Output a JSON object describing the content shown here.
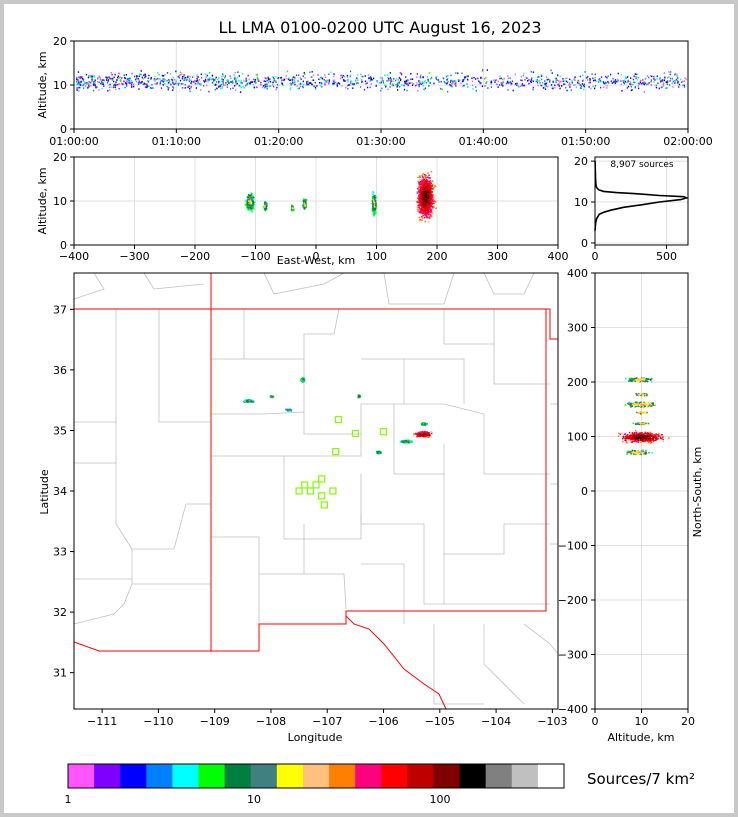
{
  "figure": {
    "title": "LL LMA 0100-0200 UTC August 16, 2023",
    "source_count_label": "8,907 sources",
    "colorbar_label": "Sources/7 km²"
  },
  "chart_data": [
    {
      "id": "time-height",
      "type": "scatter",
      "xlabel": "",
      "ylabel": "Altitude, km",
      "xticks": [
        "01:00:00",
        "01:10:00",
        "01:20:00",
        "01:30:00",
        "01:40:00",
        "01:50:00",
        "02:00:00"
      ],
      "yticks": [
        "0",
        "10",
        "20"
      ],
      "xlim": [
        "01:00:00",
        "02:00:00"
      ],
      "ylim": [
        0,
        20
      ],
      "note_series": "vertical source clusters spread across the hour, centered near 11 km altitude",
      "grid": true
    },
    {
      "id": "east-west-altitude",
      "type": "heatmap",
      "xlabel": "East-West, km",
      "ylabel": "Altitude, km",
      "xticks": [
        "−400",
        "−300",
        "−200",
        "−100",
        "0",
        "100",
        "200",
        "300",
        "400"
      ],
      "yticks": [
        "0",
        "10",
        "20"
      ],
      "xlim": [
        -400,
        400
      ],
      "ylim": [
        0,
        20
      ],
      "clusters": [
        {
          "x": -110,
          "y": 10,
          "w": 20,
          "h": 6
        },
        {
          "x": -85,
          "y": 9,
          "w": 8,
          "h": 3
        },
        {
          "x": -40,
          "y": 8.5,
          "w": 6,
          "h": 2
        },
        {
          "x": -20,
          "y": 9.5,
          "w": 8,
          "h": 4
        },
        {
          "x": 95,
          "y": 9.5,
          "w": 10,
          "h": 7
        },
        {
          "x": 180,
          "y": 11,
          "w": 40,
          "h": 14
        }
      ],
      "grid": true
    },
    {
      "id": "altitude-histogram",
      "type": "line",
      "xlabel": "",
      "ylabel": "",
      "xticks": [
        "0",
        "500"
      ],
      "yticks": [
        "0",
        "10",
        "20"
      ],
      "xlim": [
        0,
        650
      ],
      "ylim": [
        -0.5,
        21
      ],
      "series": [
        {
          "x": [
            0,
            2,
            5,
            12,
            30,
            60,
            110,
            200,
            320,
            450,
            600,
            640,
            620,
            450,
            300,
            150,
            60,
            25,
            12,
            8,
            5,
            3,
            1
          ],
          "y": [
            3,
            4,
            5,
            6,
            7,
            7.5,
            8,
            8.7,
            9.3,
            10,
            10.6,
            11,
            11.3,
            11.6,
            12,
            12.3,
            12.6,
            13,
            13.5,
            14,
            15,
            17,
            20
          ]
        }
      ],
      "grid": true
    },
    {
      "id": "plan-view",
      "type": "scatter",
      "xlabel": "Longitude",
      "ylabel": "Latitude",
      "xticks": [
        "−111",
        "−110",
        "−109",
        "−108",
        "−107",
        "−106",
        "−105",
        "−104",
        "−103"
      ],
      "yticks": [
        "31",
        "32",
        "33",
        "34",
        "35",
        "36",
        "37"
      ],
      "xlim": [
        -111.5,
        -102.9
      ],
      "ylim": [
        30.4,
        37.6
      ],
      "stations": [
        {
          "lon": -106.8,
          "lat": 35.18
        },
        {
          "lon": -106.5,
          "lat": 34.95
        },
        {
          "lon": -106.0,
          "lat": 34.98
        },
        {
          "lon": -106.85,
          "lat": 34.65
        },
        {
          "lon": -107.1,
          "lat": 34.2
        },
        {
          "lon": -107.2,
          "lat": 34.1
        },
        {
          "lon": -107.4,
          "lat": 34.1
        },
        {
          "lon": -107.5,
          "lat": 34.0
        },
        {
          "lon": -107.3,
          "lat": 34.0
        },
        {
          "lon": -106.9,
          "lat": 34.0
        },
        {
          "lon": -107.1,
          "lat": 33.92
        },
        {
          "lon": -107.05,
          "lat": 33.77
        }
      ],
      "clusters": [
        {
          "lon": -108.4,
          "lat": 35.5,
          "w": 0.25,
          "h": 0.06
        },
        {
          "lon": -108.0,
          "lat": 35.57,
          "w": 0.1,
          "h": 0.04
        },
        {
          "lon": -107.7,
          "lat": 35.35,
          "w": 0.12,
          "h": 0.04
        },
        {
          "lon": -107.45,
          "lat": 35.85,
          "w": 0.1,
          "h": 0.1
        },
        {
          "lon": -106.45,
          "lat": 35.58,
          "w": 0.05,
          "h": 0.05
        },
        {
          "lon": -105.3,
          "lat": 34.95,
          "w": 0.45,
          "h": 0.12
        },
        {
          "lon": -105.6,
          "lat": 34.83,
          "w": 0.3,
          "h": 0.06
        },
        {
          "lon": -106.1,
          "lat": 34.65,
          "w": 0.12,
          "h": 0.06
        },
        {
          "lon": -105.3,
          "lat": 35.12,
          "w": 0.15,
          "h": 0.05
        }
      ],
      "grid": false
    },
    {
      "id": "altitude-north-south",
      "type": "heatmap",
      "xlabel": "Altitude, km",
      "ylabel": "North-South, km",
      "xticks": [
        "0",
        "10",
        "20"
      ],
      "yticks": [
        "−400",
        "−300",
        "−200",
        "−100",
        "0",
        "100",
        "200",
        "300",
        "400"
      ],
      "xlim": [
        0,
        20
      ],
      "ylim": [
        -400,
        400
      ],
      "clusters": [
        {
          "x": 10,
          "y": 100,
          "w": 14,
          "h": 30
        },
        {
          "x": 10,
          "y": 160,
          "w": 10,
          "h": 14
        },
        {
          "x": 9.5,
          "y": 205,
          "w": 7,
          "h": 12
        },
        {
          "x": 9,
          "y": 72,
          "w": 8,
          "h": 10
        },
        {
          "x": 10,
          "y": 125,
          "w": 5,
          "h": 6
        },
        {
          "x": 10,
          "y": 145,
          "w": 4,
          "h": 6
        },
        {
          "x": 10,
          "y": 178,
          "w": 5,
          "h": 6
        }
      ],
      "grid": true
    },
    {
      "id": "colorbar",
      "type": "bar",
      "scale": "log",
      "ticks": [
        "1",
        "10",
        "100"
      ],
      "range": [
        1,
        1000
      ],
      "colors": [
        "#ff55ff",
        "#8000ff",
        "#0000ff",
        "#0080ff",
        "#00ffff",
        "#00ff00",
        "#008040",
        "#408080",
        "#ffff00",
        "#ffc080",
        "#ff8000",
        "#ff0080",
        "#ff0000",
        "#c00000",
        "#800000",
        "#000000",
        "#808080",
        "#c0c0c0",
        "#ffffff"
      ]
    }
  ],
  "colors": {
    "state_border": "#ff0000",
    "county_border": "#c0c0c0",
    "station_marker": "#80ff00",
    "background_outer": "#c8c8c8"
  }
}
